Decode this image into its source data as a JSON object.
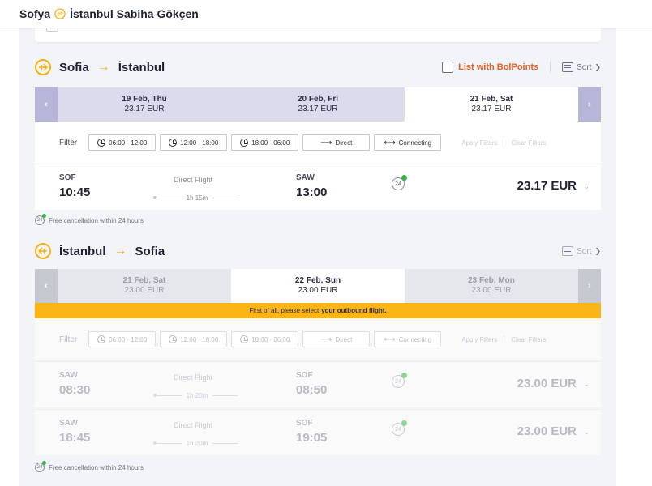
{
  "topbar": {
    "origin": "Sofya",
    "destination": "İstanbul Sabiha Gökçen"
  },
  "outbound": {
    "from": "Sofia",
    "to": "İstanbul",
    "list_bolpoints": "List with BolPoints",
    "sort": "Sort",
    "dates": [
      {
        "date": "19 Feb, Thu",
        "price": "23.17 EUR"
      },
      {
        "date": "20 Feb, Fri",
        "price": "23.17 EUR"
      },
      {
        "date": "21 Feb, Sat",
        "price": "23.17 EUR"
      }
    ],
    "filter": {
      "label": "Filter",
      "time1": "06:00 - 12:00",
      "time2": "12:00 - 18:00",
      "time3": "18:00 - 06:00",
      "direct": "Direct",
      "connecting": "Connecting",
      "apply": "Apply Filters",
      "clear": "Clear Filters"
    },
    "flights": [
      {
        "dep_code": "SOF",
        "dep_time": "10:45",
        "type": "Direct Flight",
        "duration": "1h 15m",
        "arr_code": "SAW",
        "arr_time": "13:00",
        "price": "23.17 EUR"
      }
    ],
    "free_cancel": "Free cancellation within 24 hours"
  },
  "return": {
    "from": "İstanbul",
    "to": "Sofia",
    "sort": "Sort",
    "dates": [
      {
        "date": "21 Feb, Sat",
        "price": "23.00 EUR"
      },
      {
        "date": "22 Feb, Sun",
        "price": "23.00 EUR"
      },
      {
        "date": "23 Feb, Mon",
        "price": "23.00 EUR"
      }
    ],
    "banner_prefix": "First of all, please select",
    "banner_bold": "your outbound flight.",
    "filter": {
      "label": "Filter",
      "time1": "06:00 - 12:00",
      "time2": "12:00 - 18:00",
      "time3": "18:00 - 06:00",
      "direct": "Direct",
      "connecting": "Connecting",
      "apply": "Apply Filters",
      "clear": "Clear Filters"
    },
    "flights": [
      {
        "dep_code": "SAW",
        "dep_time": "08:30",
        "type": "Direct Flight",
        "duration": "1h 20m",
        "arr_code": "SOF",
        "arr_time": "08:50",
        "price": "23.00 EUR"
      },
      {
        "dep_code": "SAW",
        "dep_time": "18:45",
        "type": "Direct Flight",
        "duration": "1h 20m",
        "arr_code": "SOF",
        "arr_time": "19:05",
        "price": "23.00 EUR"
      }
    ],
    "free_cancel": "Free cancellation within 24 hours"
  },
  "badge_24": "24",
  "colors": {
    "accent": "#f6b113",
    "selected_tab": "#ffffff",
    "inactive_tab_out": "#dcdbee",
    "inactive_tab_ret": "#e6e7ec",
    "orange": "#e85d21"
  }
}
